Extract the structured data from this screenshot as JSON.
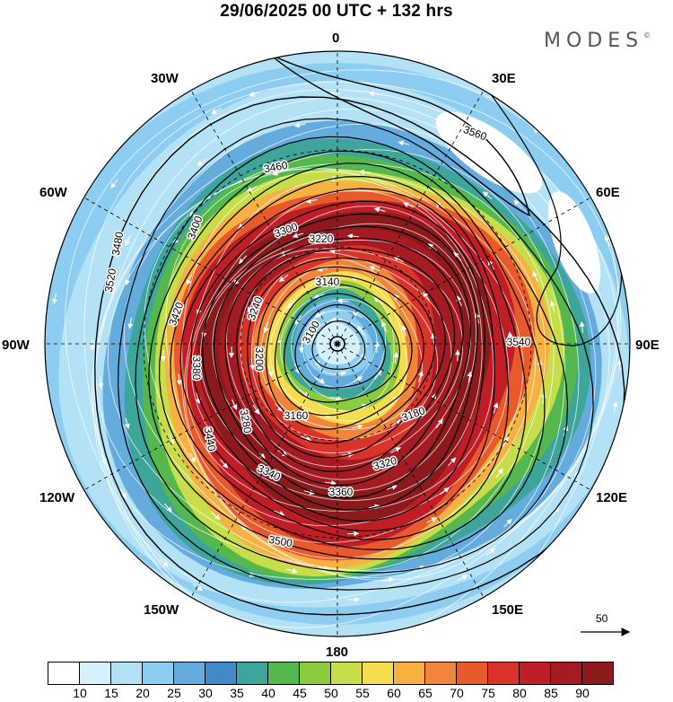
{
  "header": {
    "title": "29/06/2025  00 UTC  + 132 hrs",
    "brand": "MODES",
    "brand_mark": "©"
  },
  "map": {
    "projection": "north-polar-stereographic",
    "longitude_labels": [
      "0",
      "30E",
      "60E",
      "90E",
      "120E",
      "150E",
      "180",
      "150W",
      "120W",
      "90W",
      "60W",
      "30W"
    ],
    "contour_labels": [
      "3100",
      "3140",
      "3160",
      "3180",
      "3200",
      "3220",
      "3240",
      "3280",
      "3300",
      "3320",
      "3340",
      "3360",
      "3380",
      "3400",
      "3420",
      "3440",
      "3460",
      "3480",
      "3500",
      "3520",
      "3540",
      "3560"
    ],
    "reference_vector": {
      "label": "50"
    }
  },
  "colorbar": {
    "ticks": [
      "10",
      "15",
      "20",
      "25",
      "30",
      "35",
      "40",
      "45",
      "50",
      "55",
      "60",
      "65",
      "70",
      "75",
      "80",
      "85",
      "90"
    ],
    "colors": [
      "#ffffff",
      "#d5f1fb",
      "#b3e2f7",
      "#8dcdf1",
      "#64acde",
      "#4189c7",
      "#3ea59a",
      "#55b84f",
      "#8ccb3f",
      "#c8dd4a",
      "#f6dd4d",
      "#f7b143",
      "#f1863a",
      "#e8592c",
      "#d9332a",
      "#c01e26",
      "#a51b22",
      "#8a1a1c"
    ]
  }
}
